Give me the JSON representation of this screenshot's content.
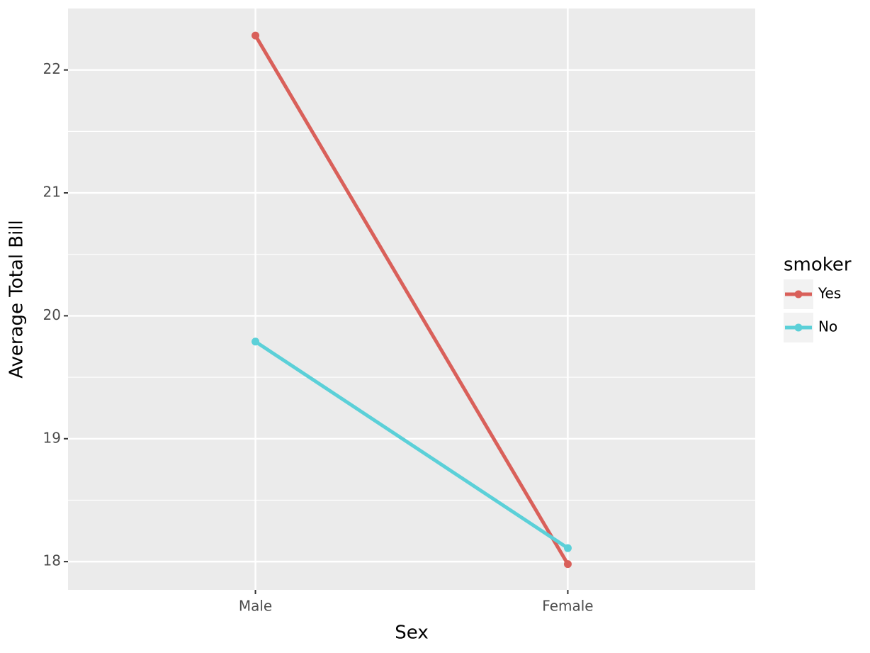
{
  "chart_data": {
    "type": "line",
    "x_label": "Sex",
    "y_label": "Average Total Bill",
    "categories": [
      "Male",
      "Female"
    ],
    "series": [
      {
        "name": "Yes",
        "color": "#d9605a",
        "values": [
          22.28,
          17.98
        ]
      },
      {
        "name": "No",
        "color": "#5bd0d8",
        "values": [
          19.79,
          18.11
        ]
      }
    ],
    "legend_title": "smoker",
    "legend": "right",
    "ylim": [
      17.77,
      22.5
    ],
    "yticks": [
      18,
      19,
      20,
      21,
      22
    ],
    "minor_yticks": [
      18.5,
      19.5,
      20.5,
      21.5
    ],
    "grid": true
  }
}
